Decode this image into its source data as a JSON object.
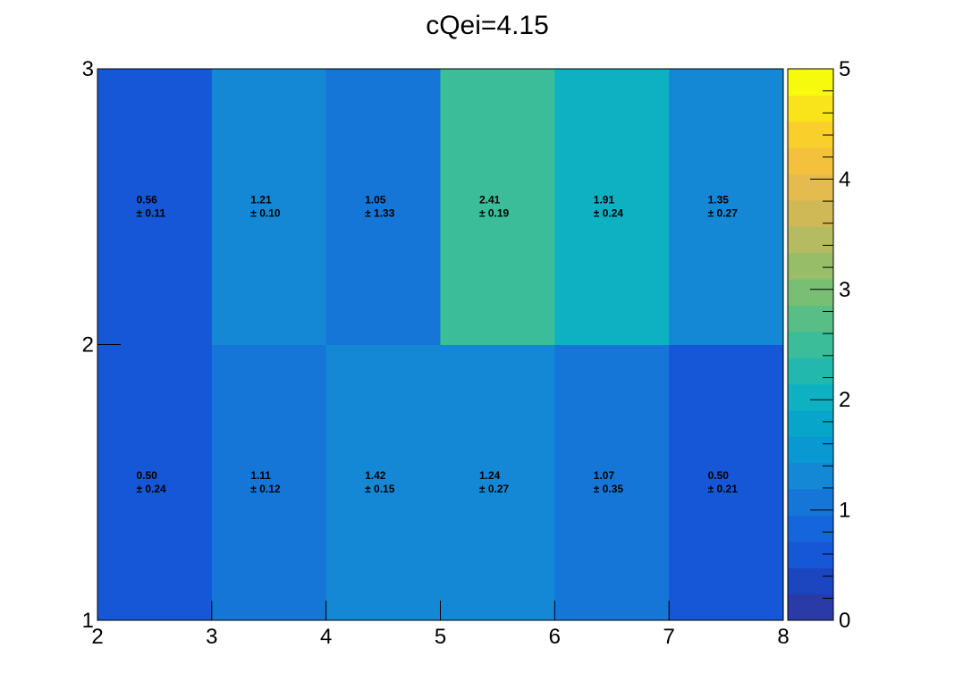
{
  "chart_data": {
    "type": "heatmap",
    "title": "cQei=4.15",
    "xlabel": "",
    "ylabel": "",
    "x_edges": [
      2,
      3,
      4,
      5,
      6,
      7,
      8
    ],
    "y_edges": [
      1,
      2,
      3
    ],
    "xlim": [
      2,
      8
    ],
    "ylim": [
      1,
      3
    ],
    "x_ticks": [
      "2",
      "3",
      "4",
      "5",
      "6",
      "7",
      "8"
    ],
    "y_ticks": [
      "1",
      "2",
      "3"
    ],
    "values": [
      [
        0.5,
        1.11,
        1.42,
        1.24,
        1.07,
        0.5
      ],
      [
        0.56,
        1.21,
        1.05,
        2.41,
        1.91,
        1.35
      ]
    ],
    "errors": [
      [
        0.24,
        0.12,
        0.15,
        0.27,
        0.35,
        0.21
      ],
      [
        0.11,
        0.1,
        1.33,
        0.19,
        0.24,
        0.27
      ]
    ],
    "value_labels": [
      [
        "0.50",
        "1.11",
        "1.42",
        "1.24",
        "1.07",
        "0.50"
      ],
      [
        "0.56",
        "1.21",
        "1.05",
        "2.41",
        "1.91",
        "1.35"
      ]
    ],
    "error_labels": [
      [
        "± 0.24",
        "± 0.12",
        "± 0.15",
        "± 0.27",
        "± 0.35",
        "± 0.21"
      ],
      [
        "± 0.11",
        "± 0.10",
        "± 1.33",
        "± 0.19",
        "± 0.24",
        "± 0.27"
      ]
    ],
    "colorbar": {
      "zlim": [
        0,
        5
      ],
      "ticks": [
        "0",
        "1",
        "2",
        "3",
        "4",
        "5"
      ],
      "palette": [
        "#2a3ba8",
        "#1c45c0",
        "#1557d6",
        "#1566dc",
        "#1676d8",
        "#1488d4",
        "#0a98d2",
        "#08a5cb",
        "#0eb1c2",
        "#23b8ae",
        "#3bbd99",
        "#57bf85",
        "#79bf73",
        "#97bd68",
        "#b4bb60",
        "#cfb957",
        "#e3bb4e",
        "#f3c13b",
        "#f9cf2b",
        "#f9e31b",
        "#f8fa0d"
      ]
    }
  }
}
